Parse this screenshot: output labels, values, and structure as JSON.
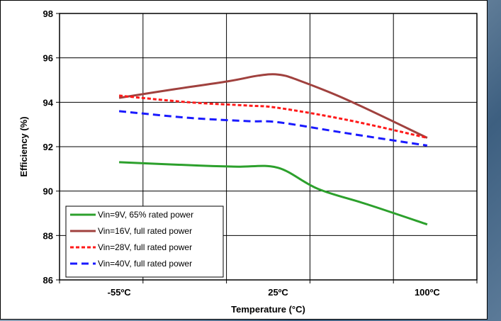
{
  "chart_data": {
    "type": "line",
    "xlabel": "Temperature (°C)",
    "ylabel": "Efficiency (%)",
    "x_tick_labels": [
      {
        "value": -55,
        "label": "-55ºC"
      },
      {
        "value": 25,
        "label": "25ºC"
      },
      {
        "value": 100,
        "label": "100ºC"
      }
    ],
    "xlim": [
      -85,
      125
    ],
    "ylim": [
      86,
      98
    ],
    "y_ticks": [
      86,
      88,
      90,
      92,
      94,
      96,
      98
    ],
    "y_tick_labels": [
      "86",
      "88",
      "90",
      "92",
      "94",
      "96",
      "98"
    ],
    "grid": true,
    "legend_position": "bottom-left",
    "series": [
      {
        "name": "Vin=9V, 65% rated power",
        "color": "#2ca02c",
        "dash": "solid",
        "x": [
          -55,
          -15,
          5,
          25,
          45,
          70,
          100
        ],
        "y": [
          91.3,
          91.15,
          91.1,
          91.05,
          90.1,
          89.4,
          88.5
        ]
      },
      {
        "name": "Vin=16V, full rated power",
        "color": "#a0413e",
        "dash": "solid",
        "x": [
          -55,
          -30,
          0,
          15,
          25,
          35,
          60,
          100
        ],
        "y": [
          94.2,
          94.55,
          94.95,
          95.2,
          95.25,
          95.0,
          94.1,
          92.4
        ]
      },
      {
        "name": "Vin=28V, full rated power",
        "color": "#ff1a1a",
        "dash": "dotted",
        "x": [
          -55,
          -20,
          10,
          25,
          60,
          100
        ],
        "y": [
          94.3,
          94.0,
          93.85,
          93.75,
          93.2,
          92.4
        ]
      },
      {
        "name": "Vin=40V, full rated power",
        "color": "#1a1aff",
        "dash": "dashed",
        "x": [
          -55,
          -20,
          10,
          25,
          60,
          100
        ],
        "y": [
          93.6,
          93.3,
          93.15,
          93.1,
          92.6,
          92.05
        ]
      }
    ]
  }
}
